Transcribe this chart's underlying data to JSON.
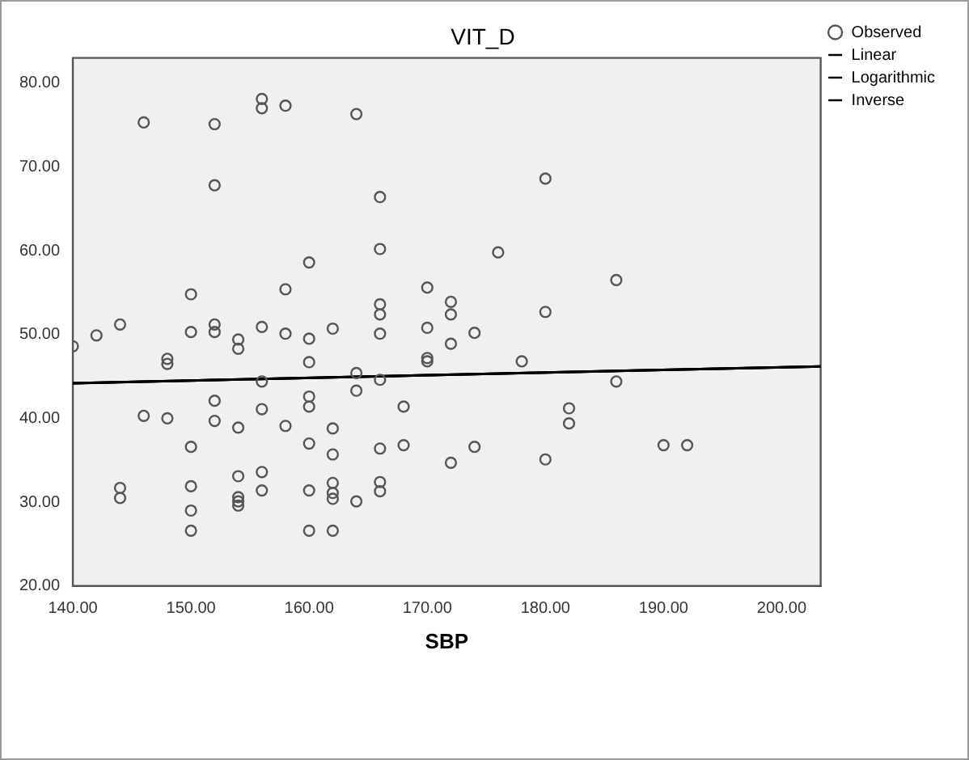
{
  "chart_data": {
    "type": "scatter",
    "title": "VIT_D",
    "xlabel": "SBP",
    "xlim": [
      140,
      203.3
    ],
    "ylim": [
      20,
      83
    ],
    "xticks": [
      {
        "value": 140,
        "label": "140.00"
      },
      {
        "value": 150,
        "label": "150.00"
      },
      {
        "value": 160,
        "label": "160.00"
      },
      {
        "value": 170,
        "label": "170.00"
      },
      {
        "value": 180,
        "label": "180.00"
      },
      {
        "value": 190,
        "label": "190.00"
      },
      {
        "value": 200,
        "label": "200.00"
      }
    ],
    "yticks": [
      {
        "value": 20,
        "label": "20.00"
      },
      {
        "value": 30,
        "label": "30.00"
      },
      {
        "value": 40,
        "label": "40.00"
      },
      {
        "value": 50,
        "label": "50.00"
      },
      {
        "value": 60,
        "label": "60.00"
      },
      {
        "value": 70,
        "label": "70.00"
      },
      {
        "value": 80,
        "label": "80.00"
      }
    ],
    "grid": false,
    "legend": "top right",
    "marker": "circle",
    "series": [
      {
        "name": "Observed",
        "color": "#555555",
        "x": [
          156,
          156,
          158,
          164,
          146,
          152,
          152,
          166,
          166,
          160,
          150,
          158,
          166,
          166,
          166,
          140,
          142,
          144,
          148,
          148,
          150,
          152,
          152,
          154,
          154,
          156,
          158,
          160,
          162,
          160,
          164,
          166,
          156,
          152,
          160,
          164,
          180,
          176,
          186,
          170,
          172,
          172,
          180,
          170,
          174,
          172,
          170,
          170,
          178,
          186,
          168,
          182,
          182,
          166,
          168,
          174,
          172,
          180,
          190,
          192,
          166,
          166,
          146,
          148,
          152,
          154,
          156,
          158,
          160,
          162,
          150,
          160,
          162,
          156,
          154,
          144,
          144,
          150,
          154,
          154,
          154,
          156,
          160,
          162,
          162,
          162,
          164,
          150,
          150,
          160,
          162
        ],
        "values": [
          78.1,
          77.0,
          77.3,
          76.3,
          75.3,
          75.1,
          67.8,
          66.4,
          60.2,
          58.6,
          54.8,
          55.4,
          53.6,
          52.4,
          50.1,
          48.6,
          49.9,
          51.2,
          47.1,
          46.5,
          50.3,
          51.2,
          50.3,
          49.4,
          48.3,
          50.9,
          50.1,
          49.5,
          50.7,
          46.7,
          45.4,
          44.6,
          44.4,
          42.1,
          42.6,
          43.3,
          68.6,
          59.8,
          56.5,
          55.6,
          53.9,
          52.4,
          52.7,
          50.8,
          50.2,
          48.9,
          47.2,
          46.8,
          46.8,
          44.4,
          41.4,
          41.2,
          39.4,
          36.4,
          36.8,
          36.6,
          34.7,
          35.1,
          36.8,
          36.8,
          32.4,
          31.3,
          40.3,
          40.0,
          39.7,
          38.9,
          41.1,
          39.1,
          41.4,
          38.8,
          36.6,
          37.0,
          35.7,
          33.6,
          33.1,
          31.7,
          30.5,
          31.9,
          30.6,
          30.1,
          29.6,
          31.4,
          31.4,
          32.3,
          31.1,
          30.4,
          30.1,
          29.0,
          26.6,
          26.6,
          26.6
        ]
      },
      {
        "name": "Linear",
        "type": "line",
        "color": "#000000",
        "marker": "none",
        "x": [
          140,
          203.3
        ],
        "values": [
          44.2,
          46.2
        ]
      },
      {
        "name": "Logarithmic",
        "type": "line",
        "color": "#000000",
        "marker": "none",
        "x": [
          140,
          203.3
        ],
        "values": [
          44.2,
          46.2
        ]
      },
      {
        "name": "Inverse",
        "type": "line",
        "color": "#000000",
        "marker": "none",
        "x": [
          140,
          203.3
        ],
        "values": [
          44.2,
          46.2
        ]
      }
    ]
  }
}
